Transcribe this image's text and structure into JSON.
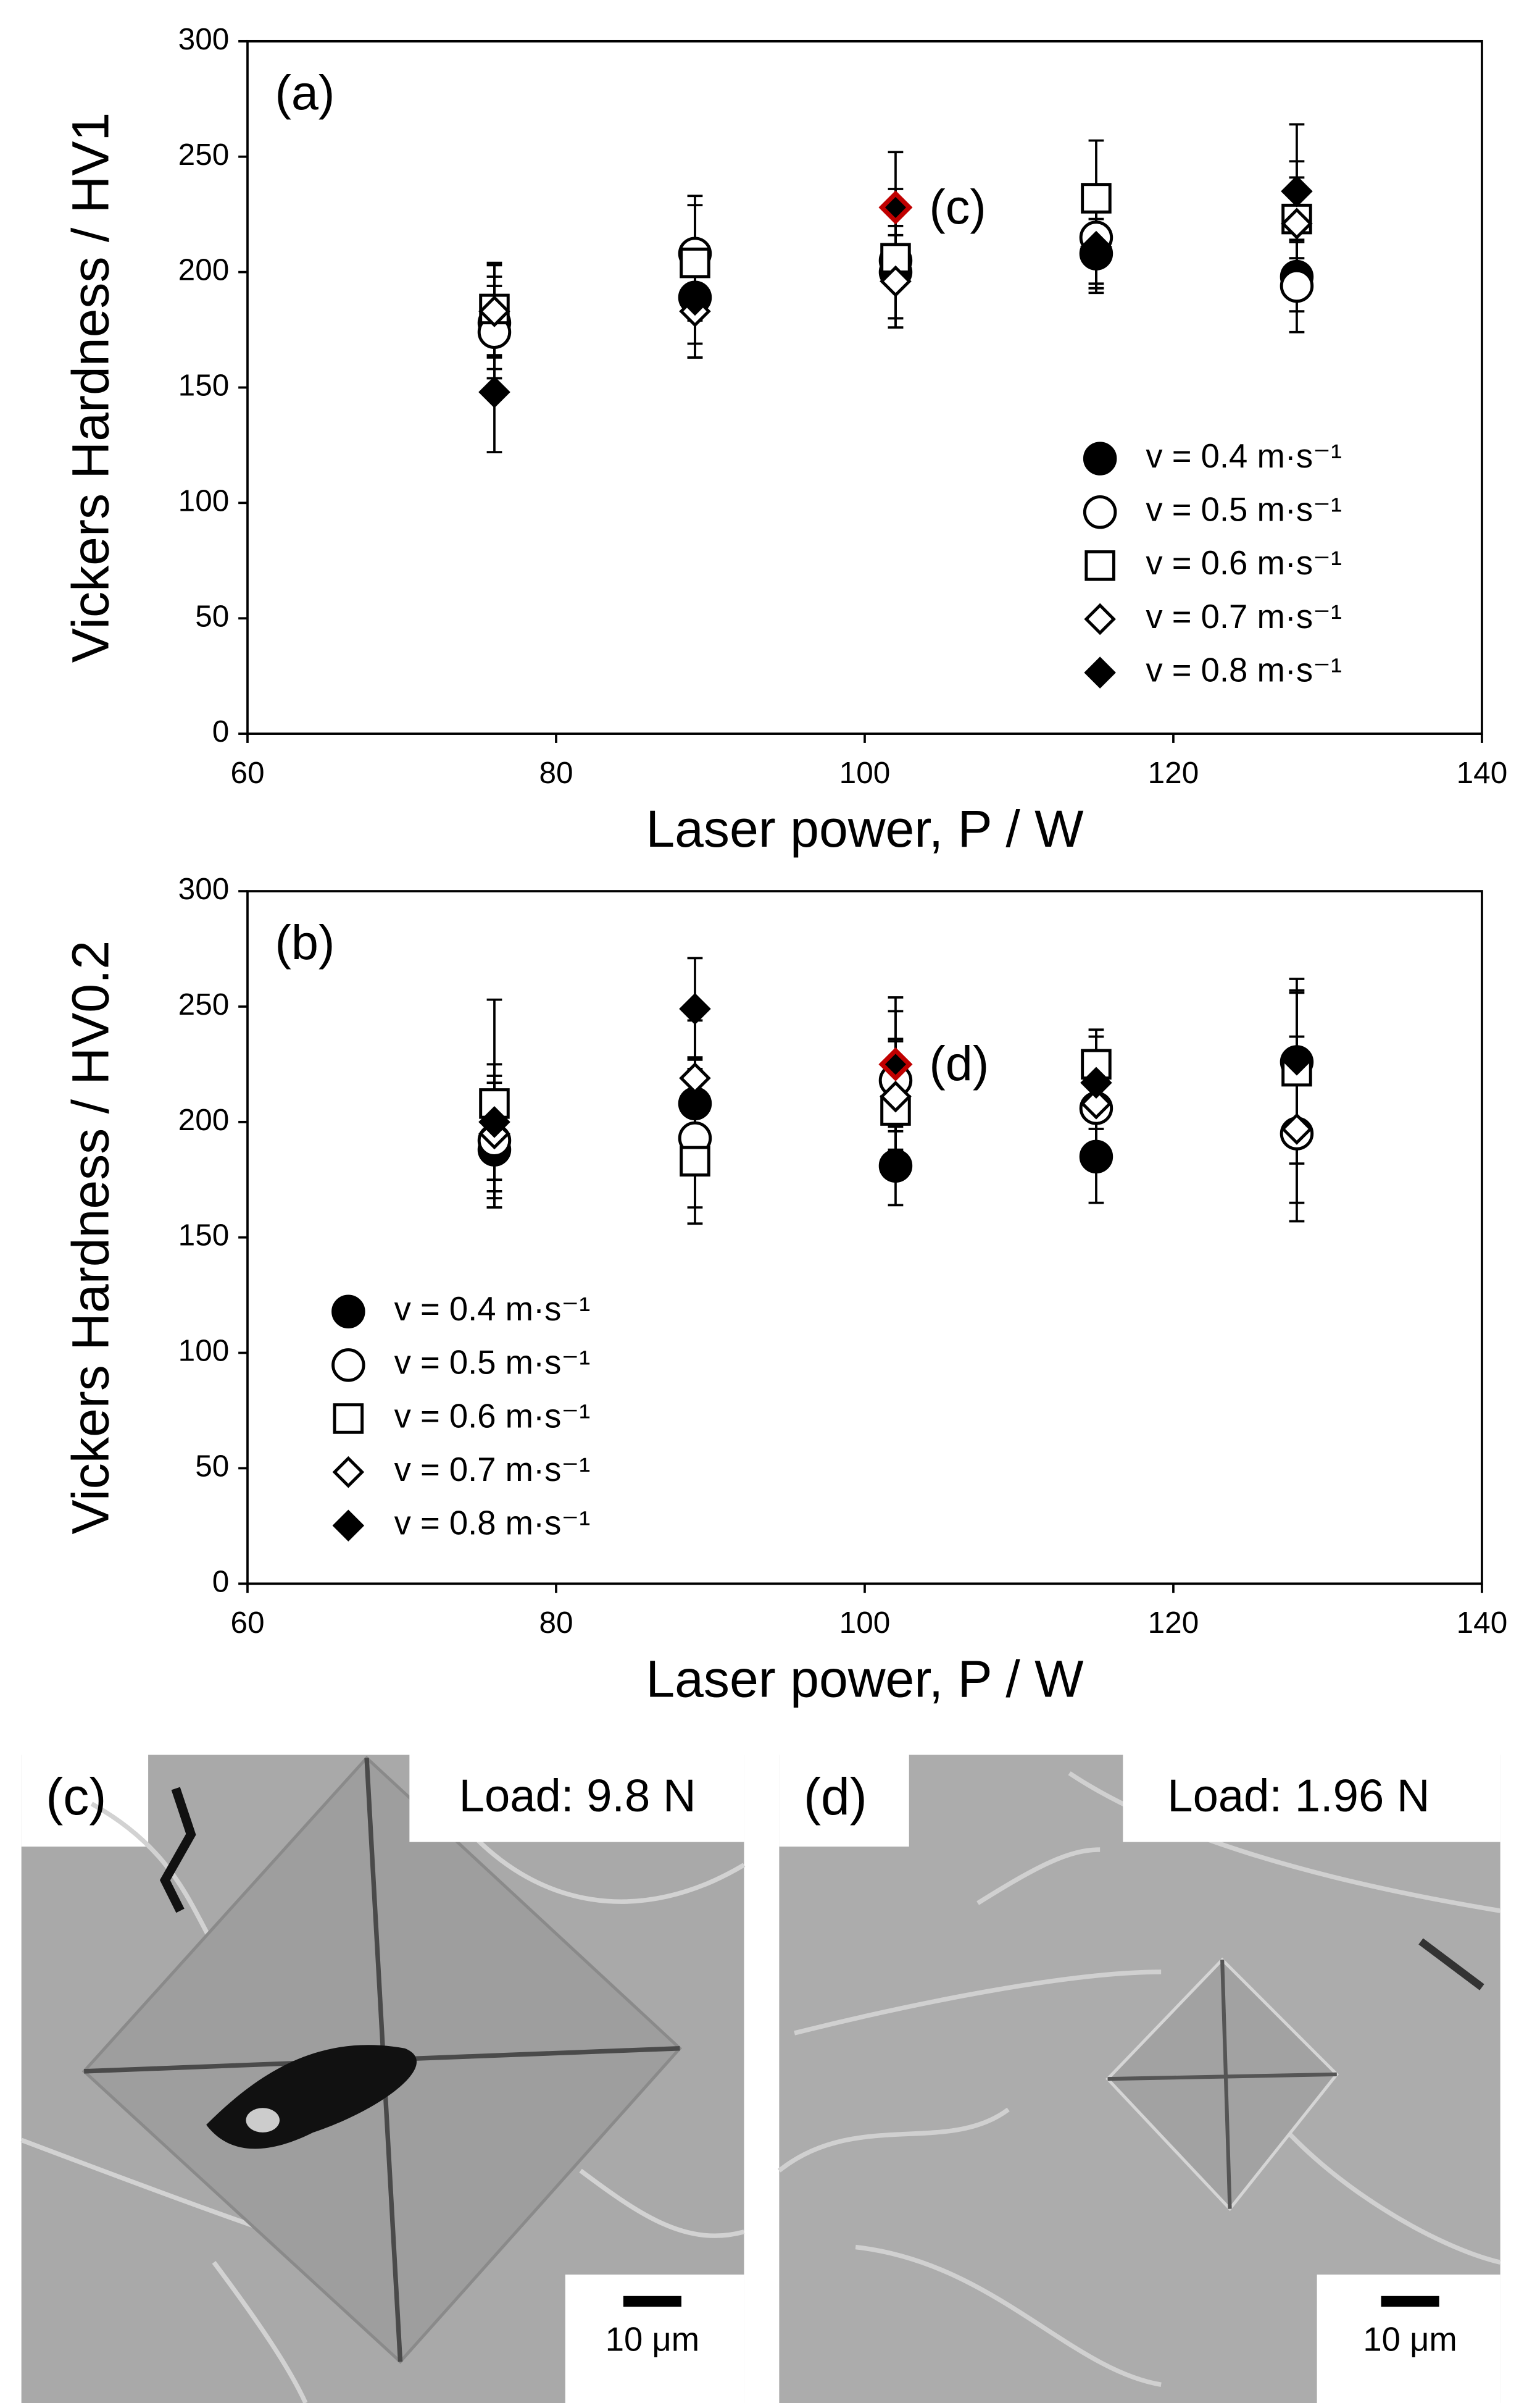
{
  "chart_data": [
    {
      "type": "scatter",
      "panel_label": "(a)",
      "xlabel": "Laser power, P / W",
      "ylabel": "Vickers Hardness / HV1",
      "x": [
        76,
        89,
        102,
        115,
        128
      ],
      "xlim": [
        60,
        140
      ],
      "xticks": [
        60,
        80,
        100,
        120,
        140
      ],
      "ylim": [
        0,
        300
      ],
      "yticks": [
        0,
        50,
        100,
        150,
        200,
        250,
        300
      ],
      "legend": "right",
      "series": [
        {
          "name": "v = 0.4 m·s⁻¹",
          "marker": "circle",
          "color": "#000000",
          "edgecolor": "#000000",
          "values": [
            178,
            189,
            200,
            208,
            198
          ],
          "errors": [
            20,
            20,
            20,
            15,
            15
          ]
        },
        {
          "name": "v = 0.5 m·s⁻¹",
          "marker": "circle",
          "color": "#ffffff",
          "edgecolor": "#000000",
          "values": [
            174,
            208,
            205,
            215,
            194
          ],
          "errors": [
            20,
            25,
            25,
            20,
            20
          ]
        },
        {
          "name": "v = 0.6 m·s⁻¹",
          "marker": "square",
          "color": "#ffffff",
          "edgecolor": "#000000",
          "values": [
            184,
            204,
            206,
            232,
            223
          ],
          "errors": [
            20,
            25,
            30,
            25,
            25
          ]
        },
        {
          "name": "v = 0.7 m·s⁻¹",
          "marker": "diamond",
          "color": "#ffffff",
          "edgecolor": "#000000",
          "values": [
            183,
            183,
            196,
            211,
            221
          ],
          "errors": [
            20,
            20,
            20,
            20,
            20
          ]
        },
        {
          "name": "v = 0.8 m·s⁻¹",
          "marker": "diamond",
          "color": "#000000",
          "edgecolor": "#000000",
          "values": [
            148,
            188,
            228,
            210,
            235
          ],
          "errors": [
            26,
            25,
            24,
            17,
            29
          ],
          "highlight": {
            "index": 2,
            "edgecolor": "#c00000",
            "annotation": "(c)"
          }
        }
      ]
    },
    {
      "type": "scatter",
      "panel_label": "(b)",
      "xlabel": "Laser power, P / W",
      "ylabel": "Vickers Hardness / HV0.2",
      "x": [
        76,
        89,
        102,
        115,
        128
      ],
      "xlim": [
        60,
        140
      ],
      "xticks": [
        60,
        80,
        100,
        120,
        140
      ],
      "ylim": [
        0,
        300
      ],
      "yticks": [
        0,
        50,
        100,
        150,
        200,
        250,
        300
      ],
      "legend": "lower left",
      "series": [
        {
          "name": "v = 0.4 m·s⁻¹",
          "marker": "circle",
          "color": "#000000",
          "edgecolor": "#000000",
          "values": [
            188,
            208,
            181,
            185,
            226
          ],
          "errors": [
            25,
            20,
            17,
            20,
            30
          ]
        },
        {
          "name": "v = 0.5 m·s⁻¹",
          "marker": "circle",
          "color": "#ffffff",
          "edgecolor": "#000000",
          "values": [
            192,
            193,
            218,
            206,
            195
          ],
          "errors": [
            25,
            30,
            30,
            25,
            30
          ]
        },
        {
          "name": "v = 0.6 m·s⁻¹",
          "marker": "square",
          "color": "#ffffff",
          "edgecolor": "#000000",
          "values": [
            208,
            183,
            205,
            225,
            222
          ],
          "errors": [
            45,
            27,
            30,
            15,
            40
          ]
        },
        {
          "name": "v = 0.7 m·s⁻¹",
          "marker": "diamond",
          "color": "#ffffff",
          "edgecolor": "#000000",
          "values": [
            195,
            219,
            211,
            208,
            197
          ],
          "errors": [
            25,
            25,
            25,
            20,
            40
          ]
        },
        {
          "name": "v = 0.8 m·s⁻¹",
          "marker": "diamond",
          "color": "#000000",
          "edgecolor": "#000000",
          "values": [
            200,
            249,
            225,
            217,
            227
          ],
          "errors": [
            25,
            22,
            29,
            20,
            30
          ],
          "highlight": {
            "index": 2,
            "edgecolor": "#c00000",
            "annotation": "(d)"
          }
        }
      ]
    }
  ],
  "micrographs": [
    {
      "label": "(c)",
      "load": "Load:  9.8 N",
      "scale": "10 μm"
    },
    {
      "label": "(d)",
      "load": "Load:  1.96 N",
      "scale": "10 μm"
    }
  ]
}
